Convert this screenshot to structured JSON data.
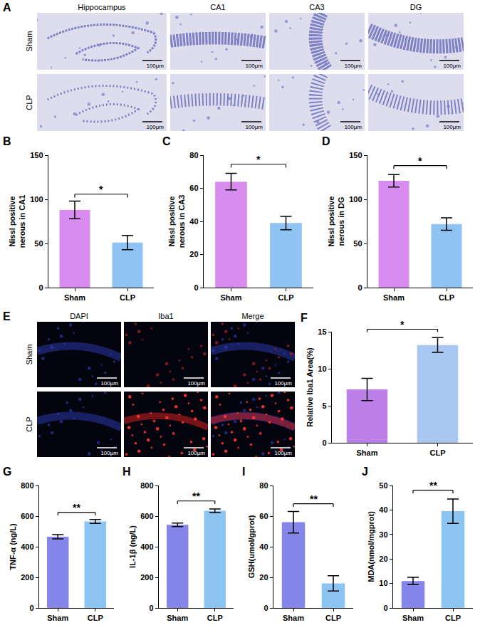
{
  "panels": [
    {
      "label": "A",
      "type": "nissl_images",
      "columns": [
        "Hippocampus",
        "CA1",
        "CA3",
        "DG"
      ],
      "rows": [
        "Sham",
        "CLP"
      ],
      "scale_bar": "100μm"
    },
    {
      "label": "E",
      "type": "fluorescence_images",
      "columns": [
        "DAPI",
        "Iba1",
        "Merge"
      ],
      "rows": [
        "Sham",
        "CLP"
      ],
      "scale_bar": "100μm"
    }
  ],
  "chart_data": [
    {
      "type": "bar",
      "panel_label": "B",
      "y_label": "Nissl positive nerous in CA1",
      "categories": [
        "Sham",
        "CLP"
      ],
      "values": [
        88,
        51
      ],
      "errors": [
        10,
        8
      ],
      "colors": [
        "#d98cf0",
        "#8fc3f3"
      ],
      "ylim": [
        0,
        150
      ],
      "yticks": [
        0,
        50,
        100,
        150
      ],
      "annotations": [
        {
          "text": "*",
          "between": [
            "Sham",
            "CLP"
          ]
        }
      ]
    },
    {
      "type": "bar",
      "panel_label": "C",
      "y_label": "Nissl positive nerous in CA3",
      "categories": [
        "Sham",
        "CLP"
      ],
      "values": [
        64,
        39
      ],
      "errors": [
        5,
        4
      ],
      "colors": [
        "#d98cf0",
        "#8fc3f3"
      ],
      "ylim": [
        0,
        80
      ],
      "yticks": [
        0,
        20,
        40,
        60,
        80
      ],
      "annotations": [
        {
          "text": "*",
          "between": [
            "Sham",
            "CLP"
          ]
        }
      ]
    },
    {
      "type": "bar",
      "panel_label": "D",
      "y_label": "Nissl positive nerous in DG",
      "categories": [
        "Sham",
        "CLP"
      ],
      "values": [
        121,
        72
      ],
      "errors": [
        7,
        7
      ],
      "colors": [
        "#d98cf0",
        "#8fc3f3"
      ],
      "ylim": [
        0,
        150
      ],
      "yticks": [
        0,
        50,
        100,
        150
      ],
      "annotations": [
        {
          "text": "*",
          "between": [
            "Sham",
            "CLP"
          ]
        }
      ]
    },
    {
      "type": "bar",
      "panel_label": "F",
      "y_label": "Relative Iba1 Area(%)",
      "categories": [
        "Sham",
        "CLP"
      ],
      "values": [
        7.2,
        13.2
      ],
      "errors": [
        1.5,
        1.0
      ],
      "colors": [
        "#bd80e8",
        "#a8c8f2"
      ],
      "ylim": [
        0,
        15
      ],
      "yticks": [
        0,
        5,
        10,
        15
      ],
      "annotations": [
        {
          "text": "*",
          "between": [
            "Sham",
            "CLP"
          ]
        }
      ]
    },
    {
      "type": "bar",
      "panel_label": "G",
      "y_label": "TNF-α (ng/L)",
      "categories": [
        "Sham",
        "CLP"
      ],
      "values": [
        465,
        565
      ],
      "errors": [
        14,
        13
      ],
      "colors": [
        "#8585ea",
        "#8cc4f2"
      ],
      "ylim": [
        0,
        800
      ],
      "yticks": [
        0,
        200,
        400,
        600,
        800
      ],
      "annotations": [
        {
          "text": "**",
          "between": [
            "Sham",
            "CLP"
          ]
        }
      ]
    },
    {
      "type": "bar",
      "panel_label": "H",
      "y_label": "IL-1β (ng/L)",
      "categories": [
        "Sham",
        "CLP"
      ],
      "values": [
        543,
        635
      ],
      "errors": [
        12,
        12
      ],
      "colors": [
        "#8585ea",
        "#8cc4f2"
      ],
      "ylim": [
        0,
        800
      ],
      "yticks": [
        0,
        200,
        400,
        600,
        800
      ],
      "annotations": [
        {
          "text": "**",
          "between": [
            "Sham",
            "CLP"
          ]
        }
      ]
    },
    {
      "type": "bar",
      "panel_label": "I",
      "y_label": "GSH(umol/gprot)",
      "categories": [
        "Sham",
        "CLP"
      ],
      "values": [
        56,
        16
      ],
      "errors": [
        7,
        5
      ],
      "colors": [
        "#8585ea",
        "#8cc4f2"
      ],
      "ylim": [
        0,
        80
      ],
      "yticks": [
        0,
        20,
        40,
        60,
        80
      ],
      "annotations": [
        {
          "text": "**",
          "between": [
            "Sham",
            "CLP"
          ]
        }
      ]
    },
    {
      "type": "bar",
      "panel_label": "J",
      "y_label": "MDA(nmol/mgprot)",
      "categories": [
        "Sham",
        "CLP"
      ],
      "values": [
        11,
        39.5
      ],
      "errors": [
        1.5,
        5
      ],
      "colors": [
        "#8585ea",
        "#8cc4f2"
      ],
      "ylim": [
        0,
        50
      ],
      "yticks": [
        0,
        10,
        20,
        30,
        40,
        50
      ],
      "annotations": [
        {
          "text": "**",
          "between": [
            "Sham",
            "CLP"
          ]
        }
      ]
    }
  ]
}
